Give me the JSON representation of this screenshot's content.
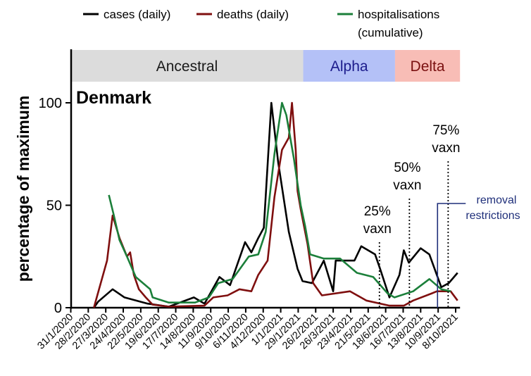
{
  "chart_data": {
    "type": "line",
    "title": "Denmark",
    "ylabel": "percentage of maximum",
    "xlabel": "",
    "ylim": [
      0,
      100
    ],
    "yticks": [
      0,
      50,
      100
    ],
    "xlim": [
      "2020-01-31",
      "2021-10-15"
    ],
    "xticks": [
      "2020-01-31",
      "2020-02-28",
      "2020-03-27",
      "2020-04-24",
      "2020-05-22",
      "2020-06-19",
      "2020-07-17",
      "2020-08-14",
      "2020-09-11",
      "2020-10-09",
      "2020-11-06",
      "2020-12-04",
      "2021-01-01",
      "2021-01-29",
      "2021-02-26",
      "2021-03-26",
      "2021-04-23",
      "2021-05-21",
      "2021-06-18",
      "2021-07-16",
      "2021-08-13",
      "2021-09-10",
      "2021-10-08"
    ],
    "xtick_labels": [
      "31/1/2020",
      "28/2/2020",
      "27/3/2020",
      "24/4/2020",
      "22/5/2020",
      "19/6/2020",
      "17/7/2020",
      "14/8/2020",
      "11/9/2020",
      "9/10/2020",
      "6/11/2020",
      "4/12/2020",
      "1/1/2021",
      "29/1/2021",
      "26/2/2021",
      "26/3/2021",
      "23/4/2021",
      "21/5/2021",
      "18/6/2021",
      "16/7/2021",
      "13/8/2021",
      "10/9/2021",
      "8/10/2021"
    ],
    "grid": false,
    "legend_placement": "top",
    "series": [
      {
        "name": "cases (daily)",
        "color": "#000000",
        "points": [
          [
            "2020-03-08",
            0
          ],
          [
            "2020-03-15",
            3
          ],
          [
            "2020-04-07",
            9
          ],
          [
            "2020-04-26",
            5
          ],
          [
            "2020-06-02",
            2
          ],
          [
            "2020-07-06",
            0.5
          ],
          [
            "2020-08-15",
            5
          ],
          [
            "2020-09-01",
            2
          ],
          [
            "2020-09-25",
            15
          ],
          [
            "2020-10-12",
            11
          ],
          [
            "2020-11-05",
            32
          ],
          [
            "2020-11-15",
            27
          ],
          [
            "2020-11-26",
            34
          ],
          [
            "2020-12-05",
            39
          ],
          [
            "2020-12-17",
            100
          ],
          [
            "2020-12-28",
            71
          ],
          [
            "2021-01-14",
            37
          ],
          [
            "2021-01-28",
            19
          ],
          [
            "2021-02-05",
            13
          ],
          [
            "2021-02-20",
            12
          ],
          [
            "2021-03-11",
            23
          ],
          [
            "2021-03-26",
            8
          ],
          [
            "2021-03-30",
            23
          ],
          [
            "2021-04-29",
            23
          ],
          [
            "2021-05-10",
            30
          ],
          [
            "2021-06-01",
            26
          ],
          [
            "2021-06-09",
            19
          ],
          [
            "2021-06-24",
            5
          ],
          [
            "2021-07-10",
            16
          ],
          [
            "2021-07-17",
            28
          ],
          [
            "2021-07-25",
            22
          ],
          [
            "2021-08-13",
            29
          ],
          [
            "2021-08-27",
            26
          ],
          [
            "2021-09-15",
            10
          ],
          [
            "2021-09-27",
            12
          ],
          [
            "2021-10-11",
            17
          ]
        ]
      },
      {
        "name": "deaths (daily)",
        "color": "#7f0f0f",
        "points": [
          [
            "2020-03-08",
            0
          ],
          [
            "2020-03-29",
            23
          ],
          [
            "2020-04-07",
            45
          ],
          [
            "2020-04-18",
            34
          ],
          [
            "2020-04-30",
            25
          ],
          [
            "2020-05-05",
            27
          ],
          [
            "2020-05-11",
            16
          ],
          [
            "2020-05-19",
            9
          ],
          [
            "2020-05-30",
            5
          ],
          [
            "2020-06-10",
            1.5
          ],
          [
            "2020-07-06",
            0.5
          ],
          [
            "2020-09-01",
            1
          ],
          [
            "2020-09-15",
            5
          ],
          [
            "2020-10-08",
            6
          ],
          [
            "2020-10-27",
            9
          ],
          [
            "2020-11-15",
            8
          ],
          [
            "2020-11-26",
            16
          ],
          [
            "2020-12-11",
            23
          ],
          [
            "2020-12-22",
            54
          ],
          [
            "2021-01-03",
            77
          ],
          [
            "2021-01-14",
            83
          ],
          [
            "2021-01-19",
            100
          ],
          [
            "2021-01-25",
            77
          ],
          [
            "2021-01-28",
            57
          ],
          [
            "2021-02-02",
            48
          ],
          [
            "2021-02-13",
            31
          ],
          [
            "2021-02-22",
            12
          ],
          [
            "2021-03-08",
            6
          ],
          [
            "2021-04-22",
            8
          ],
          [
            "2021-05-18",
            3.5
          ],
          [
            "2021-06-24",
            1
          ],
          [
            "2021-07-17",
            1
          ],
          [
            "2021-08-01",
            3.5
          ],
          [
            "2021-08-31",
            7
          ],
          [
            "2021-09-08",
            8
          ],
          [
            "2021-09-30",
            8
          ],
          [
            "2021-10-11",
            3.5
          ]
        ]
      },
      {
        "name": "hospitalisations (cumulative)",
        "color": "#1b7f3a",
        "points": [
          [
            "2020-04-01",
            55
          ],
          [
            "2020-04-09",
            45
          ],
          [
            "2020-04-18",
            33
          ],
          [
            "2020-04-30",
            25
          ],
          [
            "2020-05-14",
            15
          ],
          [
            "2020-06-06",
            9
          ],
          [
            "2020-06-10",
            5
          ],
          [
            "2020-07-06",
            2.5
          ],
          [
            "2020-08-17",
            2.5
          ],
          [
            "2020-09-08",
            5
          ],
          [
            "2020-09-23",
            12
          ],
          [
            "2020-10-16",
            14
          ],
          [
            "2020-11-11",
            25
          ],
          [
            "2020-11-26",
            26
          ],
          [
            "2020-12-08",
            37
          ],
          [
            "2020-12-22",
            75
          ],
          [
            "2021-01-03",
            100
          ],
          [
            "2021-01-10",
            94
          ],
          [
            "2021-01-22",
            73
          ],
          [
            "2021-02-02",
            50
          ],
          [
            "2021-02-09",
            40
          ],
          [
            "2021-02-17",
            26
          ],
          [
            "2021-03-11",
            24
          ],
          [
            "2021-04-06",
            24
          ],
          [
            "2021-05-03",
            17
          ],
          [
            "2021-05-29",
            15
          ],
          [
            "2021-06-21",
            7
          ],
          [
            "2021-07-02",
            5
          ],
          [
            "2021-08-01",
            8
          ],
          [
            "2021-08-27",
            14
          ],
          [
            "2021-09-15",
            9
          ],
          [
            "2021-09-30",
            8
          ]
        ]
      }
    ],
    "variant_bands": [
      {
        "label": "Ancestral",
        "start": "2020-01-31",
        "end": "2021-02-06",
        "fill": "#dcdcdc",
        "text_color": "#1a1a1a"
      },
      {
        "label": "Alpha",
        "start": "2021-02-06",
        "end": "2021-07-03",
        "fill": "#b4c1f7",
        "text_color": "#1c1c8c"
      },
      {
        "label": "Delta",
        "start": "2021-07-03",
        "end": "2021-10-15",
        "fill": "#f8bdb6",
        "text_color": "#7a1010"
      }
    ],
    "annotations": [
      {
        "line1": "25%",
        "line2": "vaxn",
        "date": "2021-06-08",
        "style": "dotted",
        "color": "#000000"
      },
      {
        "line1": "50%",
        "line2": "vaxn",
        "date": "2021-07-26",
        "style": "dotted",
        "color": "#000000"
      },
      {
        "line1": "75%",
        "line2": "vaxn",
        "date": "2021-09-26",
        "style": "dotted",
        "color": "#000000"
      },
      {
        "line1": "removal",
        "line2": "restrictions",
        "date": "2021-09-09",
        "style": "solid",
        "color": "#1f2f7a"
      }
    ]
  }
}
